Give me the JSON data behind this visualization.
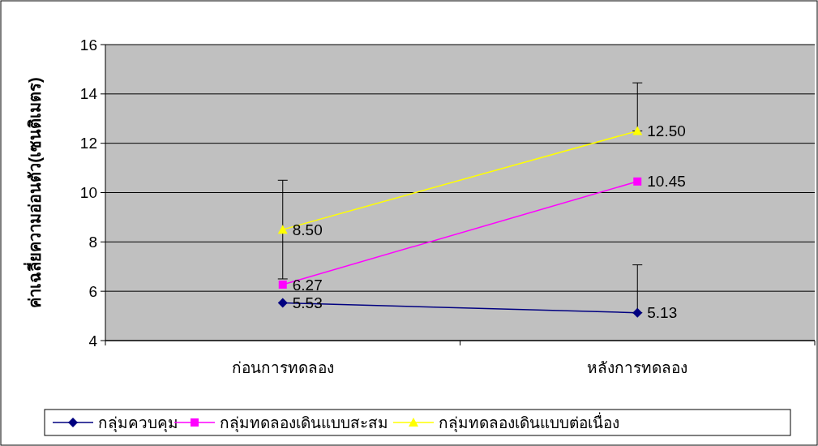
{
  "chart_data": {
    "type": "line",
    "ylabel": "ค่าเฉลี่ยความอ่อนตัว(เซนติเมตร)",
    "categories": [
      "ก่อนการทดลอง",
      "หลังการทดลอง"
    ],
    "ylim": [
      4,
      16
    ],
    "yticks": [
      4,
      6,
      8,
      10,
      12,
      14,
      16
    ],
    "grid": "y",
    "legend": "bottom",
    "series": [
      {
        "name": "กลุ่มควบคุม",
        "color": "#000080",
        "marker": "diamond",
        "values": [
          5.53,
          5.13
        ],
        "value_labels": [
          "5.53",
          "5.13"
        ],
        "errors": [
          null,
          [
            5.13,
            7.07
          ]
        ]
      },
      {
        "name": "กลุ่มทดลองเดินแบบสะสม",
        "color": "#ff00ff",
        "marker": "square",
        "values": [
          6.27,
          10.45
        ],
        "value_labels": [
          "6.27",
          "10.45"
        ]
      },
      {
        "name": "กลุ่มทดลองเดินแบบต่อเนื่อง",
        "color": "#ffff00",
        "marker": "triangle",
        "values": [
          8.5,
          12.5
        ],
        "value_labels": [
          "8.50",
          "12.50"
        ],
        "errors": [
          [
            6.5,
            10.5
          ],
          [
            12.5,
            14.45
          ]
        ]
      }
    ]
  }
}
